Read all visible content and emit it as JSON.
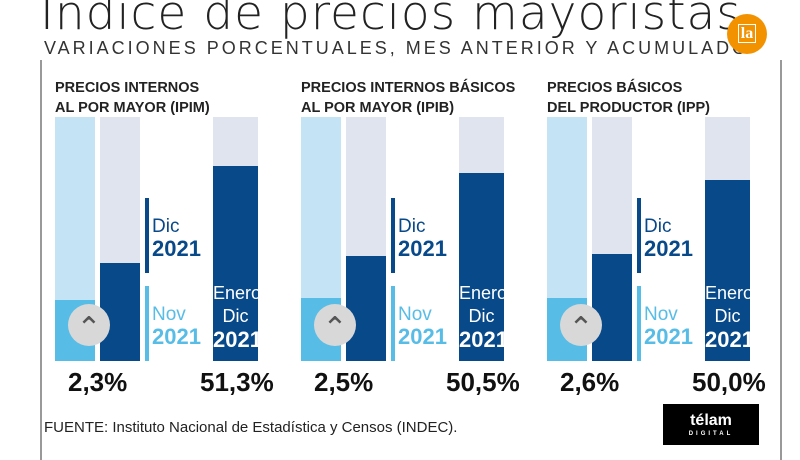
{
  "header": {
    "title": "Índice de precios mayoristas",
    "subtitle": "VARIACIONES PORCENTUALES, MES ANTERIOR Y ACUMULADO",
    "logo": "la"
  },
  "chart_data": {
    "type": "bar",
    "title": "Índice de precios mayoristas",
    "subtitle": "VARIACIONES PORCENTUALES, MES ANTERIOR Y ACUMULADO",
    "labels": {
      "dic": "Dic",
      "nov": "Nov",
      "enero": "Enero",
      "year": "2021"
    },
    "groups": [
      {
        "title_line1": "PRECIOS INTERNOS",
        "title_line2": "AL POR MAYOR (IPIM)",
        "monthly_dic": "2,3%",
        "accumulated": "51,3%",
        "fill": {
          "nov": 0.25,
          "dic": 0.4,
          "acc": 0.8
        }
      },
      {
        "title_line1": "PRECIOS INTERNOS BÁSICOS",
        "title_line2": "AL POR MAYOR (IPIB)",
        "monthly_dic": "2,5%",
        "accumulated": "50,5%",
        "fill": {
          "nov": 0.26,
          "dic": 0.43,
          "acc": 0.77
        }
      },
      {
        "title_line1": "PRECIOS BÁSICOS",
        "title_line2": "DEL PRODUCTOR (IPP)",
        "monthly_dic": "2,6%",
        "accumulated": "50,0%",
        "fill": {
          "nov": 0.26,
          "dic": 0.44,
          "acc": 0.74
        }
      }
    ]
  },
  "footer": {
    "source": "FUENTE: Instituto Nacional de Estadística y Censos (INDEC).",
    "brand": "télam",
    "brand_sub": "DIGITAL"
  }
}
